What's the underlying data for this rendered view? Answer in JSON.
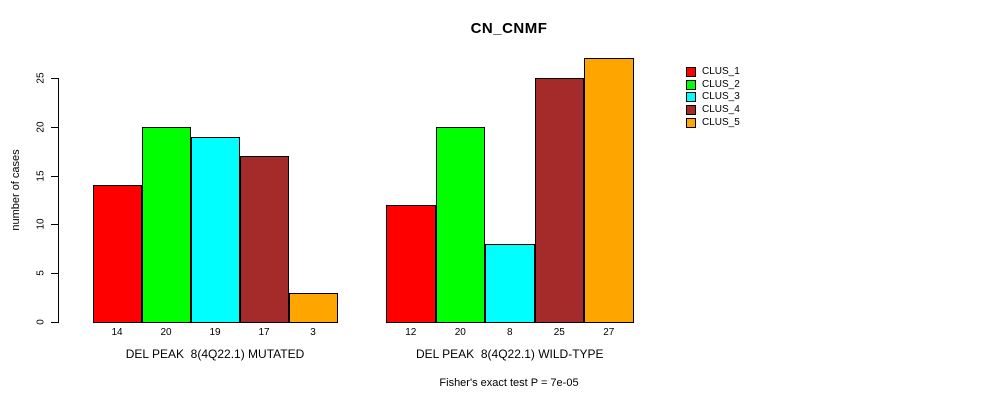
{
  "title": "CN_CNMF",
  "footer": "Fisher's exact test P = 7e-05",
  "y_axis": {
    "label": "number of cases",
    "ticks": [
      "0",
      "5",
      "10",
      "15",
      "20",
      "25"
    ]
  },
  "legend": {
    "position": "right",
    "items": [
      {
        "label": "CLUS_1",
        "color": "#FF0000"
      },
      {
        "label": "CLUS_2",
        "color": "#00FF00"
      },
      {
        "label": "CLUS_3",
        "color": "#00FFFF"
      },
      {
        "label": "CLUS_4",
        "color": "#A52A2A"
      },
      {
        "label": "CLUS_5",
        "color": "#FFA500"
      }
    ]
  },
  "chart_data": {
    "type": "bar",
    "title": "CN_CNMF",
    "xlabel": "",
    "ylabel": "number of cases",
    "ylim": [
      0,
      27
    ],
    "yticks": [
      0,
      5,
      10,
      15,
      20,
      25
    ],
    "grid": false,
    "legend_position": "right",
    "categories": [
      "DEL PEAK  8(4Q22.1) MUTATED",
      "DEL PEAK  8(4Q22.1) WILD-TYPE"
    ],
    "series": [
      {
        "name": "CLUS_1",
        "color": "#FF0000",
        "values": [
          14,
          12
        ]
      },
      {
        "name": "CLUS_2",
        "color": "#00FF00",
        "values": [
          20,
          20
        ]
      },
      {
        "name": "CLUS_3",
        "color": "#00FFFF",
        "values": [
          19,
          8
        ]
      },
      {
        "name": "CLUS_4",
        "color": "#A52A2A",
        "values": [
          17,
          25
        ]
      },
      {
        "name": "CLUS_5",
        "color": "#FFA500",
        "values": [
          3,
          27
        ]
      }
    ],
    "bar_value_labels": [
      [
        14,
        20,
        19,
        17,
        3
      ],
      [
        12,
        20,
        8,
        25,
        27
      ]
    ],
    "annotation": "Fisher's exact test P = 7e-05"
  }
}
